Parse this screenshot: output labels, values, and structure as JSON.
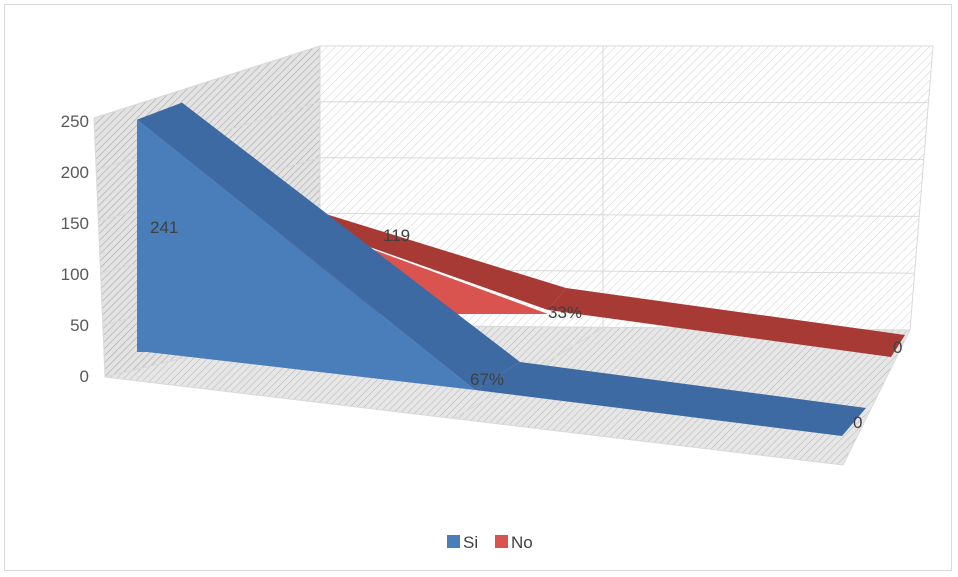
{
  "chart_data": {
    "type": "area",
    "style": "3d",
    "categories": [
      "",
      "",
      ""
    ],
    "series": [
      {
        "name": "Si",
        "values": [
          241,
          0,
          0
        ],
        "color": "#4a7ebb",
        "top_color": "#3e6aa4"
      },
      {
        "name": "No",
        "values": [
          119,
          0,
          0
        ],
        "color": "#d9534f",
        "top_color": "#a83a36"
      }
    ],
    "data_labels": {
      "Si": [
        "241",
        "67%",
        "0"
      ],
      "No": [
        "119",
        "33%",
        "0"
      ]
    },
    "yticks": [
      "0",
      "50",
      "100",
      "150",
      "200",
      "250"
    ],
    "ylim": [
      0,
      250
    ],
    "title": "",
    "xlabel": "",
    "ylabel": "",
    "grid": true,
    "legend_position": "bottom"
  },
  "colors": {
    "grid": "#d9d9d9",
    "wall_hatch": "#c8c8c8",
    "floor_hatch": "#b9b9b9"
  }
}
